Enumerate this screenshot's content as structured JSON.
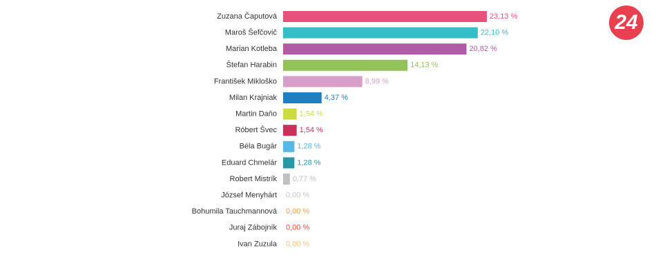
{
  "chart_data": {
    "type": "bar",
    "orientation": "horizontal",
    "categories": [
      "Zuzana Čaputová",
      "Maroš Šefčovič",
      "Marian Kotleba",
      "Štefan Harabin",
      "František Mikloško",
      "Milan Krajniak",
      "Martin Daňo",
      "Róbert Švec",
      "Béla Bugár",
      "Eduard Chmelár",
      "Robert Mistrík",
      "József Menyhárt",
      "Bohumila Tauchmannová",
      "Juraj Zábojník",
      "Ivan Zuzula"
    ],
    "values": [
      23.13,
      22.1,
      20.82,
      14.13,
      8.99,
      4.37,
      1.54,
      1.54,
      1.28,
      1.28,
      0.77,
      0,
      0,
      0,
      0
    ],
    "value_labels": [
      "23,13 %",
      "22,10 %",
      "20,82 %",
      "14,13 %",
      "8,99 %",
      "4,37 %",
      "1,54 %",
      "1,54 %",
      "1,28 %",
      "1,28 %",
      "0,77 %",
      "0,00 %",
      "0,00 %",
      "0,00 %",
      "0,00 %"
    ],
    "colors": [
      "#e8517a",
      "#35bec8",
      "#b05aa8",
      "#94c25a",
      "#d79ec8",
      "#1f7fc0",
      "#cddb43",
      "#c8305a",
      "#56b8e8",
      "#2a97a5",
      "#c0c0c0",
      "#c8c8c8",
      "#f0a040",
      "#e04a3a",
      "#f5c080"
    ]
  },
  "logo": "24"
}
